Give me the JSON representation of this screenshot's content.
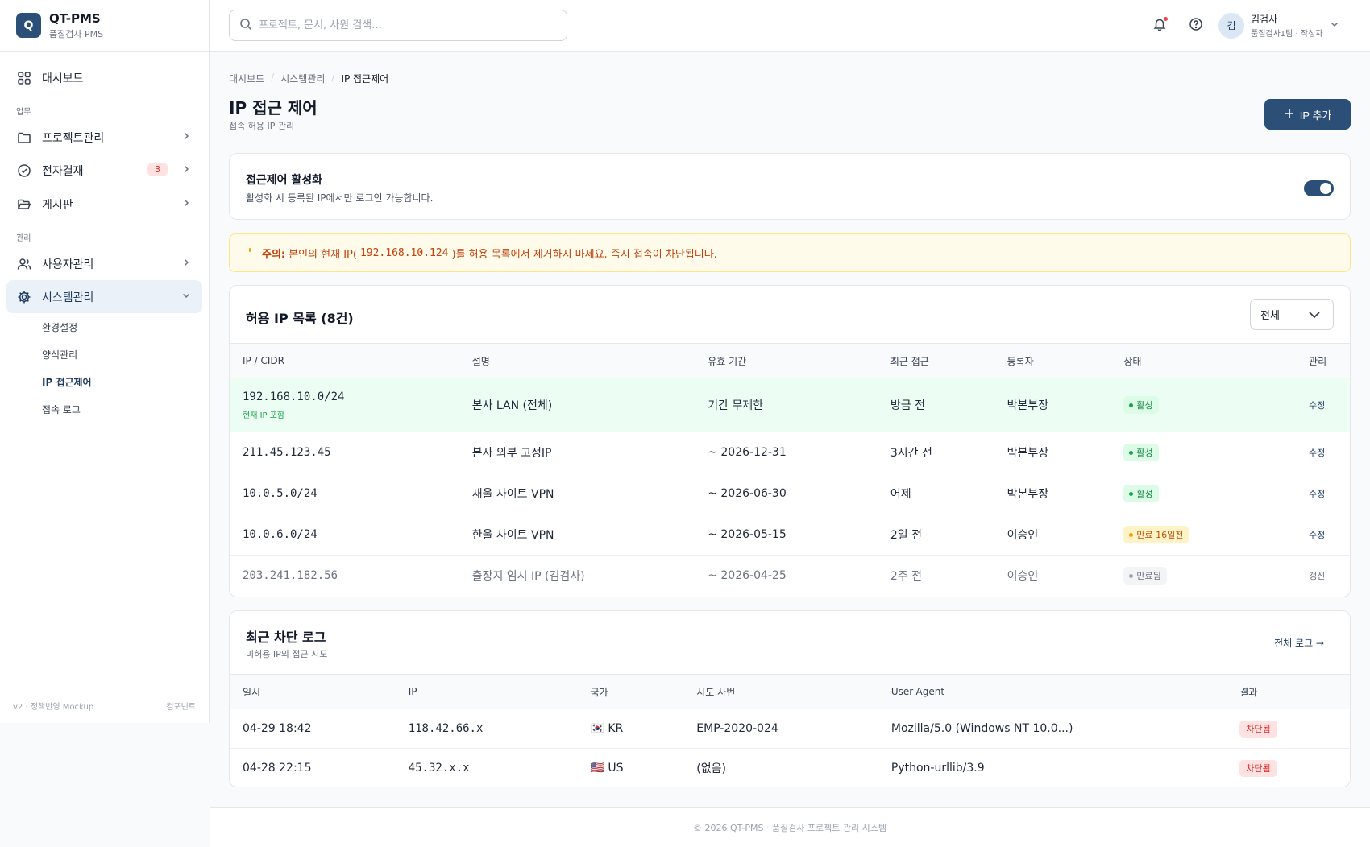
{
  "brand": {
    "logo_letter": "Q",
    "name": "QT-PMS",
    "sub": "품질검사 PMS"
  },
  "sidebar": {
    "dashboard": "대시보드",
    "section_work": "업무",
    "projects": "프로젝트관리",
    "approval": "전자결재",
    "approval_badge": "3",
    "board": "게시판",
    "section_admin": "관리",
    "users": "사용자관리",
    "system": "시스템관리",
    "sub_items": [
      "환경설정",
      "양식관리",
      "IP 접근제어",
      "접속 로그"
    ],
    "footer_version": "v2 · 정책반영 Mockup",
    "footer_link": "컴포넌트"
  },
  "header": {
    "search_placeholder": "프로젝트, 문서, 사원 검색...",
    "avatar_initial": "김",
    "user_name": "김검사",
    "user_role": "품질검사1팀 · 작성자"
  },
  "breadcrumb": [
    "대시보드",
    "시스템관리",
    "IP 접근제어"
  ],
  "page": {
    "title": "IP 접근 제어",
    "subtitle": "접속 허용 IP 관리",
    "add_button": "IP 추가"
  },
  "toggle_card": {
    "title": "접근제어 활성화",
    "description": "활성화 시 등록된 IP에서만 로그인 가능합니다.",
    "enabled": true
  },
  "warning": {
    "label": "주의:",
    "text_before": "본인의 현재 IP(",
    "ip": "192.168.10.124",
    "text_after": ")를 허용 목록에서 제거하지 마세요. 즉시 접속이 차단됩니다."
  },
  "ip_list": {
    "title": "허용 IP 목록 (8건)",
    "filter_value": "전체",
    "columns": [
      "IP / CIDR",
      "설명",
      "유효 기간",
      "최근 접근",
      "등록자",
      "상태",
      "관리"
    ],
    "rows": [
      {
        "ip": "192.168.10.0/24",
        "note": "현재 IP 포함",
        "desc": "본사 LAN (전체)",
        "period": "기간 무제한",
        "last": "방금 전",
        "owner": "박본부장",
        "status": "활성",
        "action": "수정"
      },
      {
        "ip": "211.45.123.45",
        "note": "",
        "desc": "본사 외부 고정IP",
        "period": "~ 2026-12-31",
        "last": "3시간 전",
        "owner": "박본부장",
        "status": "활성",
        "action": "수정"
      },
      {
        "ip": "10.0.5.0/24",
        "note": "",
        "desc": "새울 사이트 VPN",
        "period": "~ 2026-06-30",
        "last": "어제",
        "owner": "박본부장",
        "status": "활성",
        "action": "수정"
      },
      {
        "ip": "10.0.6.0/24",
        "note": "",
        "desc": "한울 사이트 VPN",
        "period": "~ 2026-05-15",
        "last": "2일 전",
        "owner": "이승인",
        "status": "만료 16일전",
        "action": "수정"
      },
      {
        "ip": "203.241.182.56",
        "note": "",
        "desc": "출장지 임시 IP (김검사)",
        "period": "~ 2026-04-25",
        "last": "2주 전",
        "owner": "이승인",
        "status": "만료됨",
        "action": "갱신"
      }
    ]
  },
  "block_log": {
    "title": "최근 차단 로그",
    "subtitle": "미허용 IP의 접근 시도",
    "all_link": "전체 로그 →",
    "columns": [
      "일시",
      "IP",
      "국가",
      "시도 사번",
      "User-Agent",
      "결과"
    ],
    "rows": [
      {
        "time": "04-29 18:42",
        "ip": "118.42.66.x",
        "flag": "🇰🇷",
        "country": "KR",
        "emp": "EMP-2020-024",
        "ua": "Mozilla/5.0 (Windows NT 10.0...)",
        "result": "차단됨"
      },
      {
        "time": "04-28 22:15",
        "ip": "45.32.x.x",
        "flag": "🇺🇸",
        "country": "US",
        "emp": "(없음)",
        "ua": "Python-urllib/3.9",
        "result": "차단됨"
      }
    ]
  },
  "footer": "© 2026 QT-PMS · 품질검사 프로젝트 관리 시스템",
  "colors": {
    "primary": "#2c4f78",
    "active_bg": "#eaf1f9",
    "success": "#16a34a",
    "warning": "#f59e0b",
    "danger": "#dc2626"
  }
}
